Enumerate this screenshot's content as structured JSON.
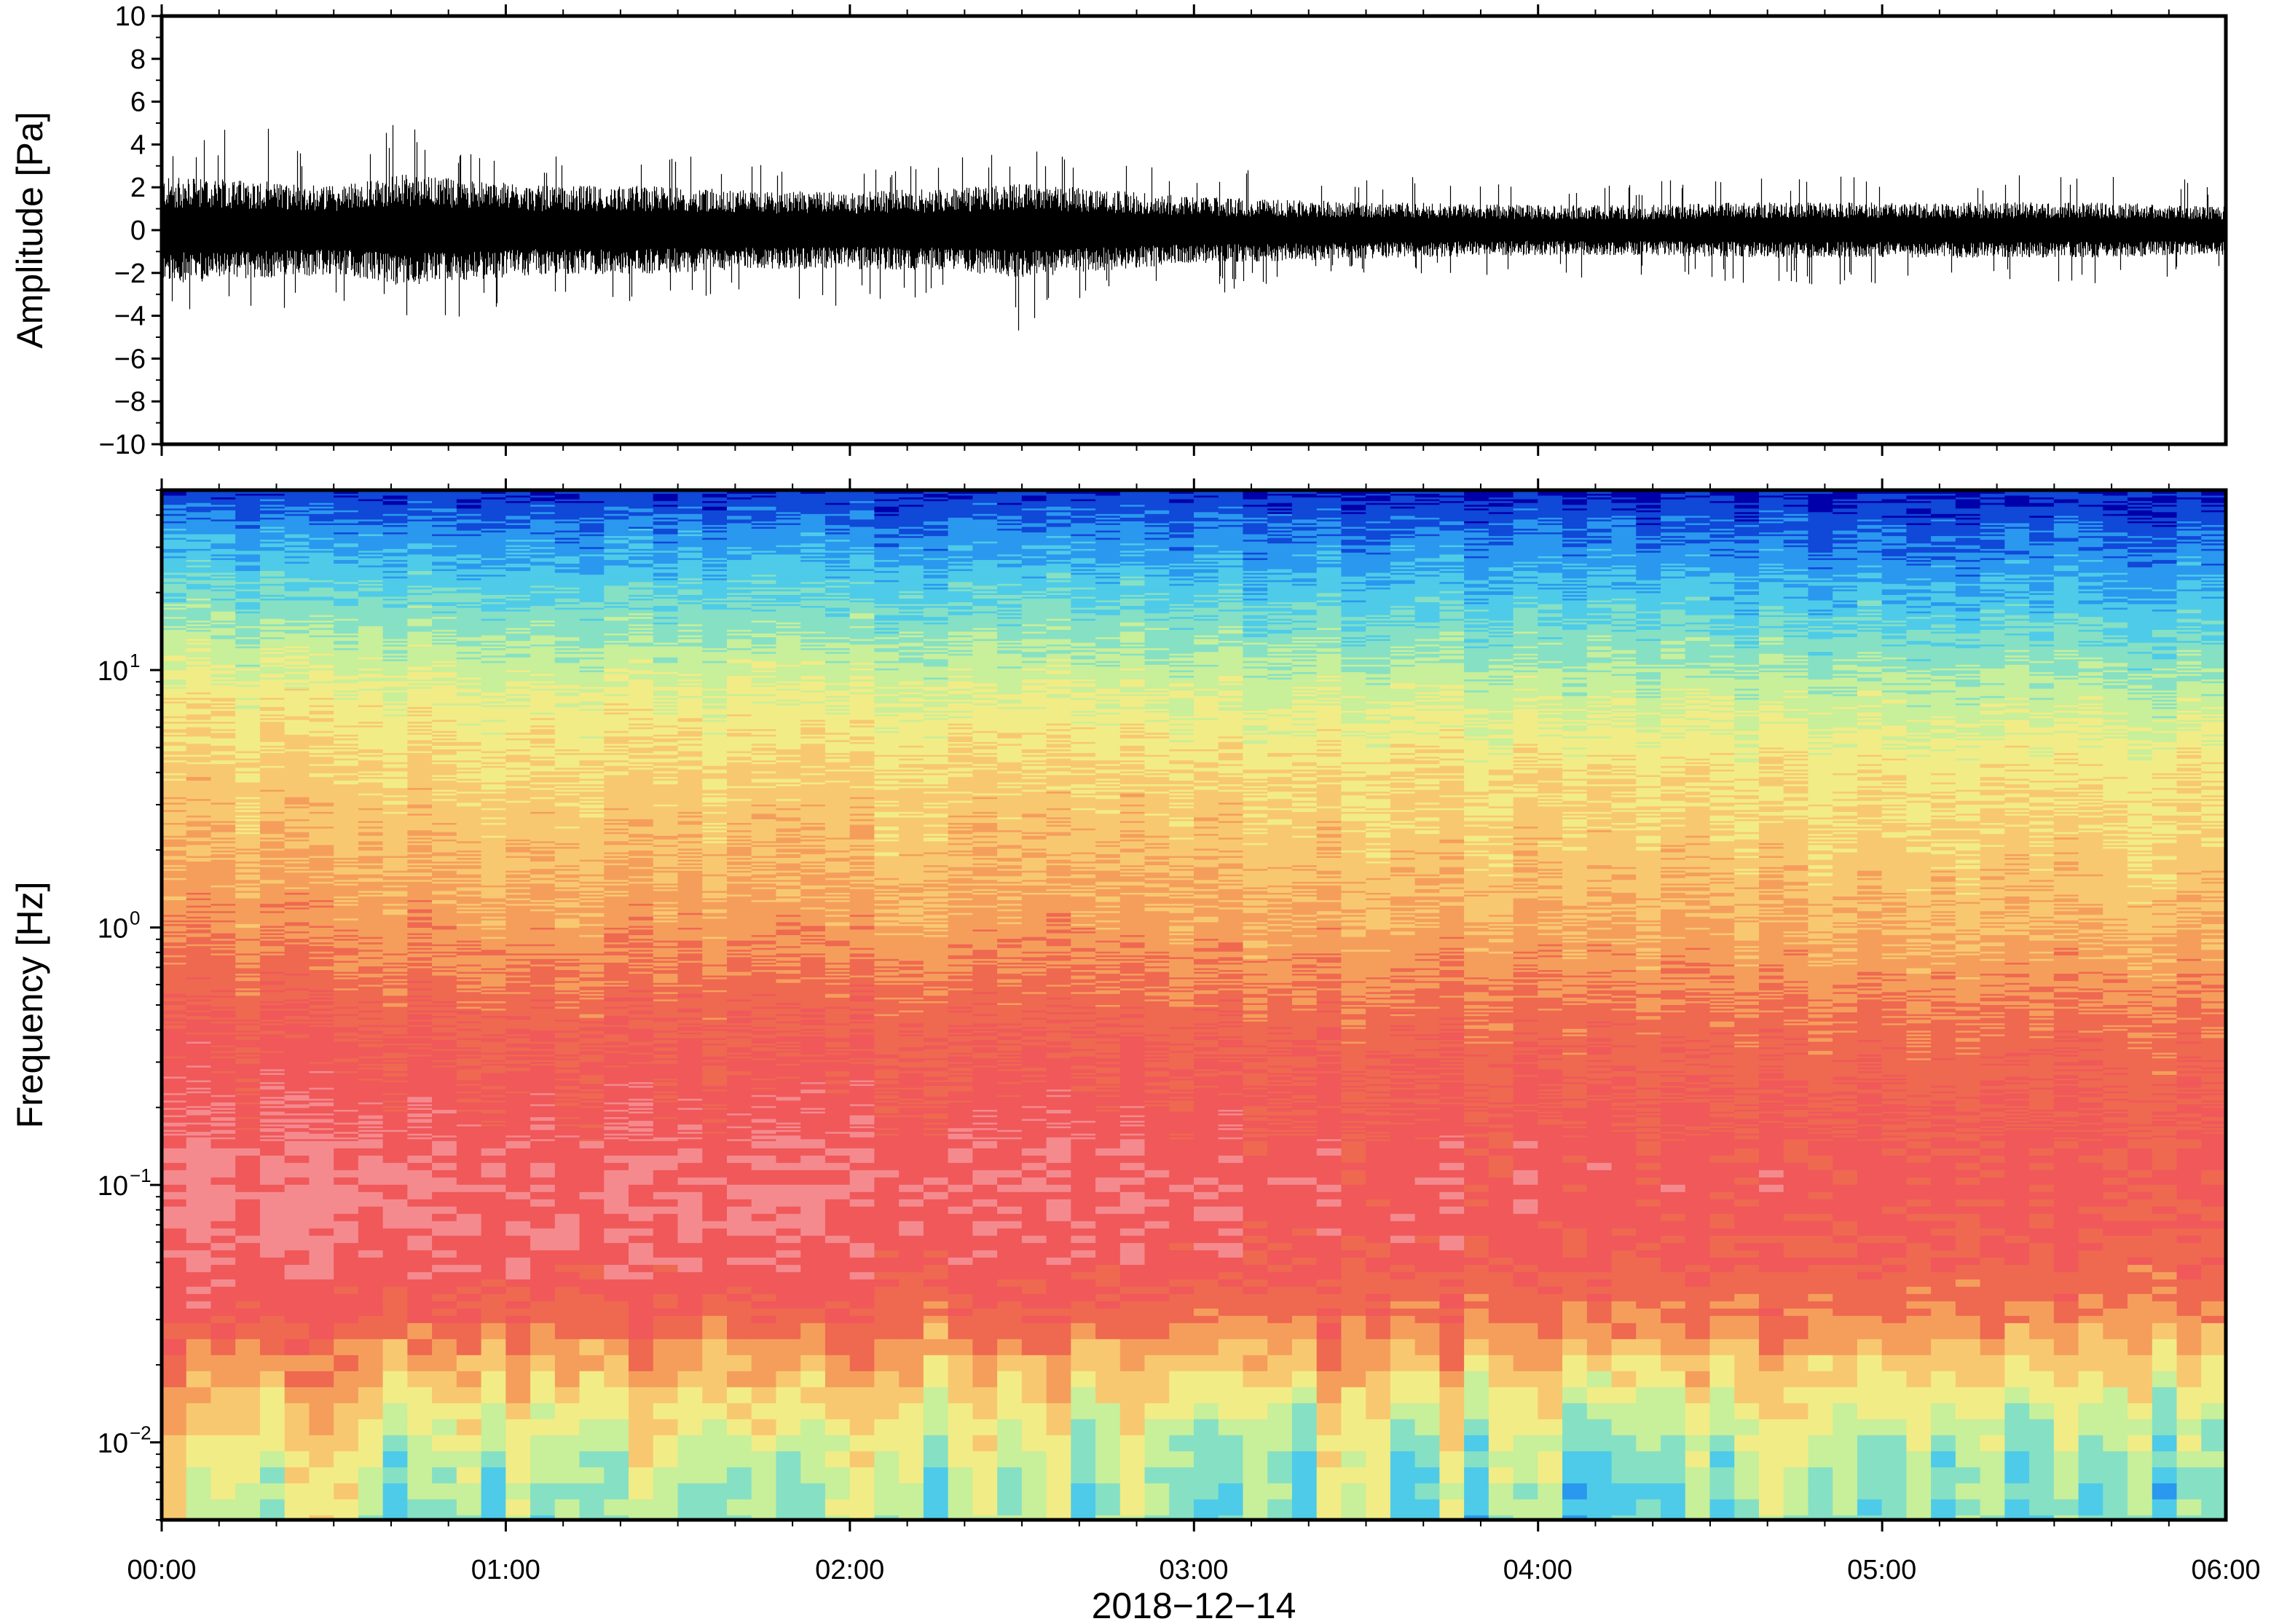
{
  "chart_data": [
    {
      "type": "line",
      "panel": "waveform",
      "ylabel": "Amplitude [Pa]",
      "ylim": [
        -10,
        10
      ],
      "yticks": [
        {
          "value": 10,
          "label": "10"
        },
        {
          "value": 8,
          "label": "8"
        },
        {
          "value": 6,
          "label": "6"
        },
        {
          "value": 4,
          "label": "4"
        },
        {
          "value": 2,
          "label": "2"
        },
        {
          "value": 0,
          "label": "0"
        },
        {
          "value": -2,
          "label": "−2"
        },
        {
          "value": -4,
          "label": "−4"
        },
        {
          "value": -6,
          "label": "−6"
        },
        {
          "value": -8,
          "label": "−8"
        },
        {
          "value": -10,
          "label": "−10"
        }
      ],
      "x_range_hours": [
        0,
        6
      ],
      "envelope": {
        "x_hours": [
          0.0,
          0.25,
          0.5,
          0.7,
          0.9,
          1.1,
          1.4,
          1.75,
          2.0,
          2.3,
          2.5,
          2.7,
          3.0,
          3.3,
          3.6,
          4.0,
          4.3,
          4.6,
          5.0,
          5.3,
          5.6,
          6.0
        ],
        "max": [
          4.2,
          5.2,
          3.5,
          5.6,
          3.8,
          3.6,
          3.9,
          3.2,
          3.0,
          3.5,
          3.8,
          3.2,
          2.8,
          2.9,
          2.7,
          2.0,
          2.2,
          2.7,
          2.5,
          2.6,
          2.9,
          2.2
        ],
        "min": [
          -4.2,
          -4.0,
          -3.2,
          -4.3,
          -4.1,
          -3.0,
          -3.4,
          -3.0,
          -3.7,
          -3.3,
          -4.8,
          -3.1,
          -3.3,
          -2.2,
          -2.0,
          -2.2,
          -2.4,
          -2.6,
          -2.6,
          -2.3,
          -2.8,
          -2.2
        ],
        "typical_abs": [
          1.9,
          1.8,
          1.6,
          2.0,
          1.8,
          1.6,
          1.6,
          1.4,
          1.4,
          1.5,
          1.7,
          1.5,
          1.2,
          1.1,
          1.0,
          0.9,
          0.9,
          1.0,
          1.0,
          1.0,
          1.0,
          0.9
        ]
      }
    },
    {
      "type": "heatmap",
      "panel": "spectrogram",
      "ylabel": "Frequency [Hz]",
      "yscale": "log",
      "ylim": [
        0.005,
        50
      ],
      "yticks": [
        {
          "value": 0.01,
          "base": "10",
          "exp": "−2"
        },
        {
          "value": 0.1,
          "base": "10",
          "exp": "−1"
        },
        {
          "value": 1,
          "base": "10",
          "exp": "0"
        },
        {
          "value": 10,
          "base": "10",
          "exp": "1"
        }
      ],
      "colormap": [
        "#0000aa",
        "#1048d8",
        "#2a98ee",
        "#4ecbe8",
        "#86e0c4",
        "#c8ef9a",
        "#f2ec86",
        "#f8c870",
        "#f59e5c",
        "#ef6850",
        "#f0585a",
        "#f48a8e"
      ],
      "level_profile": {
        "freq_hz": [
          0.005,
          0.008,
          0.012,
          0.02,
          0.03,
          0.05,
          0.1,
          0.2,
          0.4,
          1.0,
          2.0,
          4.0,
          8.0,
          12.0,
          20.0,
          35.0,
          50.0
        ],
        "level_start": [
          5.0,
          5.5,
          6.5,
          8.0,
          9.6,
          10.5,
          10.8,
          10.2,
          9.6,
          8.2,
          7.4,
          6.8,
          6.0,
          5.0,
          3.6,
          2.0,
          0.6
        ],
        "level_end": [
          3.8,
          4.2,
          5.0,
          6.5,
          8.2,
          9.3,
          9.7,
          9.4,
          8.8,
          7.4,
          6.8,
          6.2,
          4.8,
          3.8,
          2.5,
          1.2,
          0.2
        ]
      }
    }
  ],
  "xaxis": {
    "xlabel": "2018−12−14",
    "ticks": [
      {
        "value": 0,
        "label": "00:00"
      },
      {
        "value": 1,
        "label": "01:00"
      },
      {
        "value": 2,
        "label": "02:00"
      },
      {
        "value": 3,
        "label": "03:00"
      },
      {
        "value": 4,
        "label": "04:00"
      },
      {
        "value": 5,
        "label": "05:00"
      },
      {
        "value": 6,
        "label": "06:00"
      }
    ],
    "minor_tick_step_hours": 0.1667
  },
  "colors": {
    "trace": "#000000",
    "frame": "#000000",
    "background": "#ffffff"
  }
}
